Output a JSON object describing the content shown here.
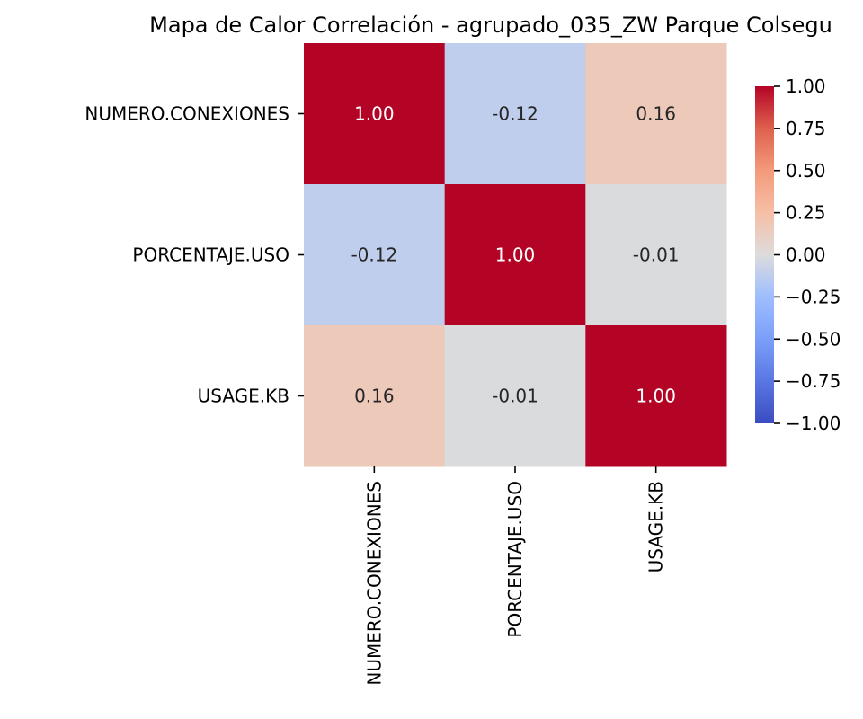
{
  "chart_data": {
    "type": "heatmap",
    "title": "Mapa de Calor Correlación - agrupado_035_ZW Parque Colsegu",
    "rows": [
      "NUMERO.CONEXIONES",
      "PORCENTAJE.USO",
      "USAGE.KB"
    ],
    "columns": [
      "NUMERO.CONEXIONES",
      "PORCENTAJE.USO",
      "USAGE.KB"
    ],
    "values": [
      [
        1.0,
        -0.12,
        0.16
      ],
      [
        -0.12,
        1.0,
        -0.01
      ],
      [
        0.16,
        -0.01,
        1.0
      ]
    ],
    "annotations": [
      [
        "1.00",
        "-0.12",
        "0.16"
      ],
      [
        "-0.12",
        "1.00",
        "-0.01"
      ],
      [
        "0.16",
        "-0.01",
        "1.00"
      ]
    ],
    "colormap": "coolwarm",
    "vmin": -1.0,
    "vmax": 1.0,
    "colorbar": {
      "ticks": [
        1.0,
        0.75,
        0.5,
        0.25,
        0.0,
        -0.25,
        -0.5,
        -0.75,
        -1.0
      ],
      "tick_labels": [
        "1.00",
        "0.75",
        "0.50",
        "0.25",
        "0.00",
        "−0.25",
        "−0.50",
        "−0.75",
        "−1.00"
      ],
      "placement": "right"
    }
  }
}
